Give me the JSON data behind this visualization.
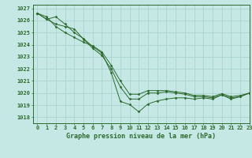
{
  "title": "Graphe pression niveau de la mer (hPa)",
  "background_color": "#c5e8e5",
  "grid_color": "#aad4d0",
  "line_color": "#2d6a2d",
  "marker_color": "#2d6a2d",
  "xlim": [
    -0.5,
    23
  ],
  "ylim": [
    1017.5,
    1027.3
  ],
  "xticks": [
    0,
    1,
    2,
    3,
    4,
    5,
    6,
    7,
    8,
    9,
    10,
    11,
    12,
    13,
    14,
    15,
    16,
    17,
    18,
    19,
    20,
    21,
    22,
    23
  ],
  "yticks": [
    1018,
    1019,
    1020,
    1021,
    1022,
    1023,
    1024,
    1025,
    1026,
    1027
  ],
  "series1": [
    1026.6,
    1026.1,
    1026.3,
    1025.7,
    1025.0,
    1024.5,
    1023.85,
    1023.3,
    1021.7,
    1019.3,
    1019.05,
    1018.45,
    1019.1,
    1019.35,
    1019.5,
    1019.6,
    1019.6,
    1019.5,
    1019.6,
    1019.5,
    1019.85,
    1019.5,
    1019.7,
    1020.0
  ],
  "series2": [
    1026.6,
    1026.1,
    1025.7,
    1025.5,
    1025.3,
    1024.45,
    1023.7,
    1023.1,
    1022.0,
    1020.5,
    1019.5,
    1019.5,
    1020.0,
    1020.0,
    1020.1,
    1020.0,
    1019.9,
    1019.7,
    1019.7,
    1019.6,
    1019.85,
    1019.6,
    1019.7,
    1020.0
  ],
  "series3": [
    1026.6,
    1026.3,
    1025.5,
    1025.0,
    1024.6,
    1024.2,
    1023.9,
    1023.4,
    1022.3,
    1021.0,
    1019.9,
    1019.9,
    1020.2,
    1020.2,
    1020.2,
    1020.1,
    1020.0,
    1019.8,
    1019.8,
    1019.7,
    1019.95,
    1019.7,
    1019.8,
    1020.0
  ],
  "tick_fontsize": 5.0,
  "xlabel_fontsize": 6.0
}
